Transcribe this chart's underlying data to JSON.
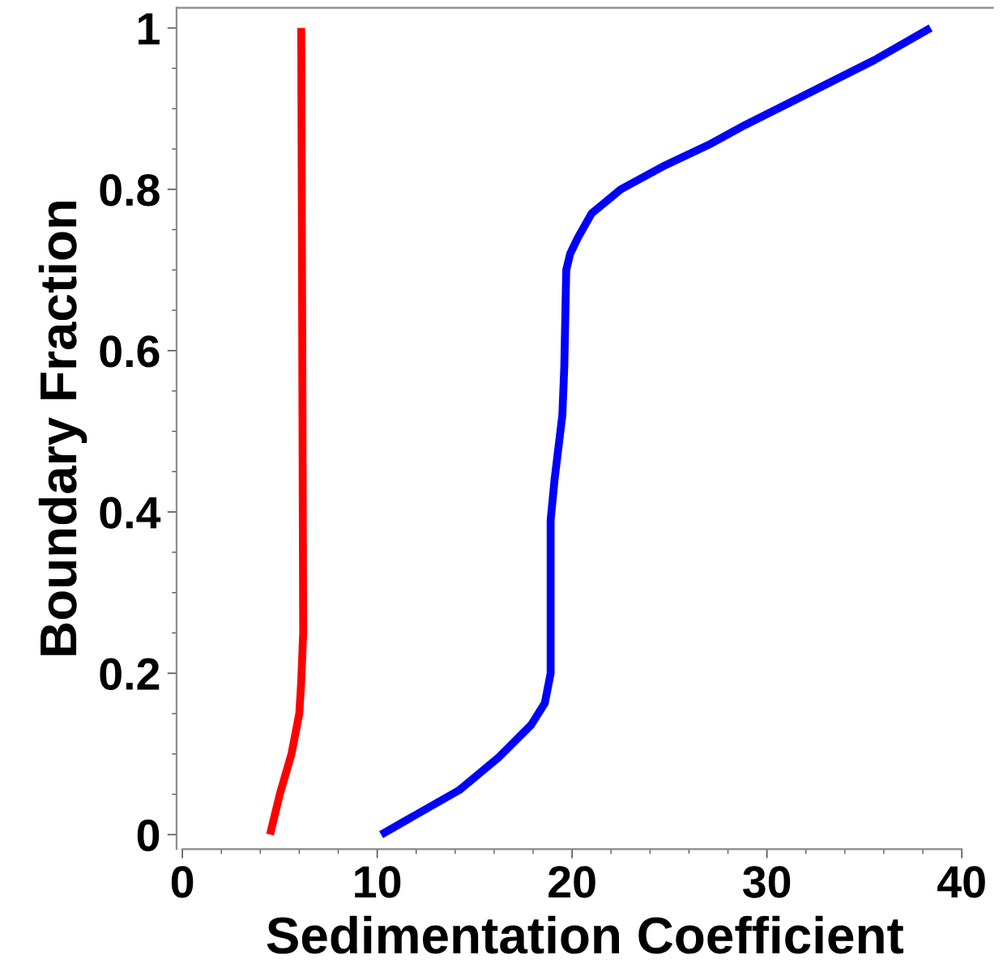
{
  "chart_data": {
    "type": "line",
    "xlabel": "Sedimentation Coefficient",
    "ylabel": "Boundary Fraction",
    "xlim": [
      -0.3,
      41.6
    ],
    "ylim": [
      -0.018,
      1.025
    ],
    "xticks": [
      0,
      10,
      20,
      30,
      40
    ],
    "yticks": [
      0,
      0.2,
      0.4,
      0.6,
      0.8,
      1
    ],
    "grid": false,
    "legend": false,
    "marker": "none",
    "line_style": "solid",
    "series": [
      {
        "color": "#ff0000",
        "x": [
          4.5,
          5.0,
          5.6,
          6.0,
          6.1,
          6.2,
          6.1
        ],
        "values": [
          0,
          0.05,
          0.1,
          0.15,
          0.19,
          0.25,
          1.0
        ]
      },
      {
        "color": "#0000ff",
        "x": [
          10.2,
          14.2,
          16.2,
          17.9,
          18.6,
          18.9,
          18.9,
          19.1,
          19.5,
          19.6,
          19.7,
          19.9,
          20.3,
          21.0,
          22.5,
          24.8,
          27.0,
          28.9,
          31.8,
          35.5,
          38.4
        ],
        "values": [
          0,
          0.055,
          0.095,
          0.136,
          0.163,
          0.2,
          0.39,
          0.44,
          0.52,
          0.58,
          0.7,
          0.72,
          0.74,
          0.77,
          0.8,
          0.83,
          0.855,
          0.88,
          0.915,
          0.96,
          1.0
        ]
      }
    ]
  }
}
